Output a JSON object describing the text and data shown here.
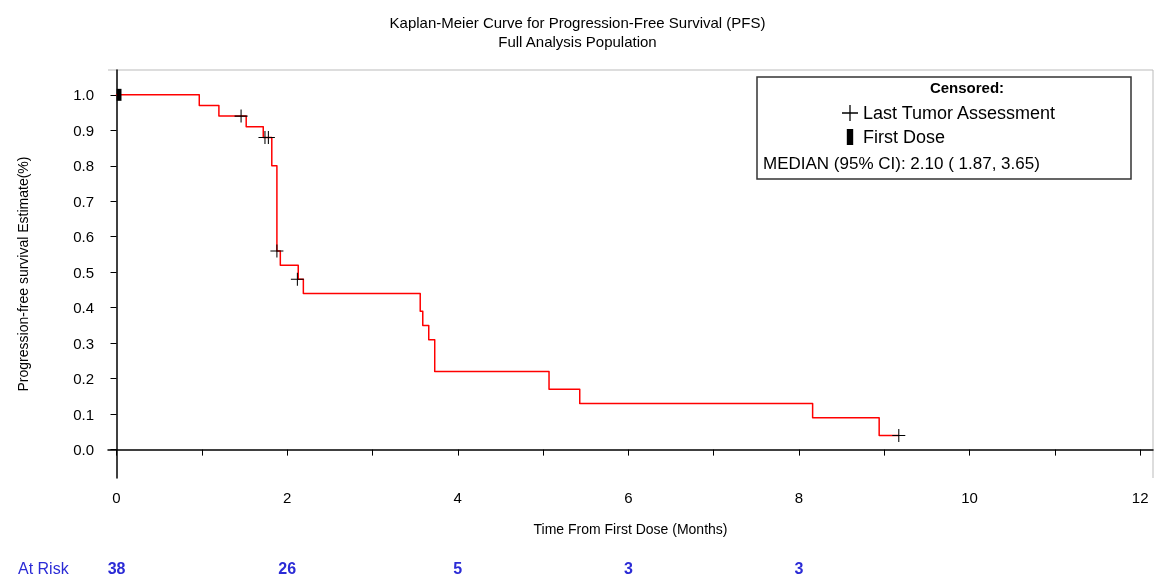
{
  "chart_data": {
    "type": "step",
    "title": "Kaplan-Meier Curve for Progression-Free Survival (PFS)",
    "subtitle": "Full Analysis Population",
    "xlabel": "Time From First Dose (Months)",
    "ylabel": "Progression-free survival Estimate(%)",
    "legend_title": "Censored:",
    "series": [
      {
        "color": "#ff0000",
        "line_style": "solid",
        "marker": "none",
        "x": [
          0,
          0.97,
          1.2,
          1.52,
          1.72,
          1.82,
          1.88,
          1.92,
          2.13,
          2.19,
          3.56,
          3.59,
          3.66,
          3.73,
          5.07,
          5.43,
          8.16,
          8.94,
          9.17
        ],
        "values": [
          1.0,
          0.97,
          0.94,
          0.91,
          0.88,
          0.8,
          0.56,
          0.52,
          0.48,
          0.44,
          0.39,
          0.35,
          0.31,
          0.22,
          0.17,
          0.13,
          0.09,
          0.04,
          0.04
        ]
      },
      {
        "type": "scatter",
        "name": "Last Tumor Assessment",
        "color": "#000000",
        "marker": "cross",
        "x": [
          1.46,
          1.74,
          1.78,
          1.88,
          2.12,
          9.17
        ],
        "values": [
          0.94,
          0.88,
          0.88,
          0.56,
          0.48,
          0.04
        ]
      },
      {
        "type": "scatter",
        "name": "First Dose",
        "color": "#000000",
        "marker": "square",
        "x": [
          0.03
        ],
        "values": [
          1.0
        ]
      }
    ],
    "xlim": [
      -0.1,
      12.15
    ],
    "xticks": [
      0,
      {
        "value": 1,
        "label": null
      },
      2,
      {
        "value": 3,
        "label": null
      },
      4,
      {
        "value": 5,
        "label": null
      },
      6,
      {
        "value": 7,
        "label": null
      },
      8,
      {
        "value": 9,
        "label": null
      },
      10,
      {
        "value": 11,
        "label": null
      },
      12
    ],
    "ylim": [
      -0.08,
      1.07
    ],
    "yticks": [
      {
        "value": 0,
        "label": "0.0"
      },
      0.1,
      0.2,
      0.3,
      0.4,
      0.5,
      0.6,
      0.7,
      0.8,
      0.9,
      {
        "value": 1,
        "label": "1.0"
      }
    ],
    "grid": false,
    "legend": "top right",
    "annotations": [
      "MEDIAN (95% CI): 2.10 ( 1.87, 3.65)",
      "At Risk",
      "38",
      "26",
      "5",
      "3",
      "3"
    ]
  }
}
